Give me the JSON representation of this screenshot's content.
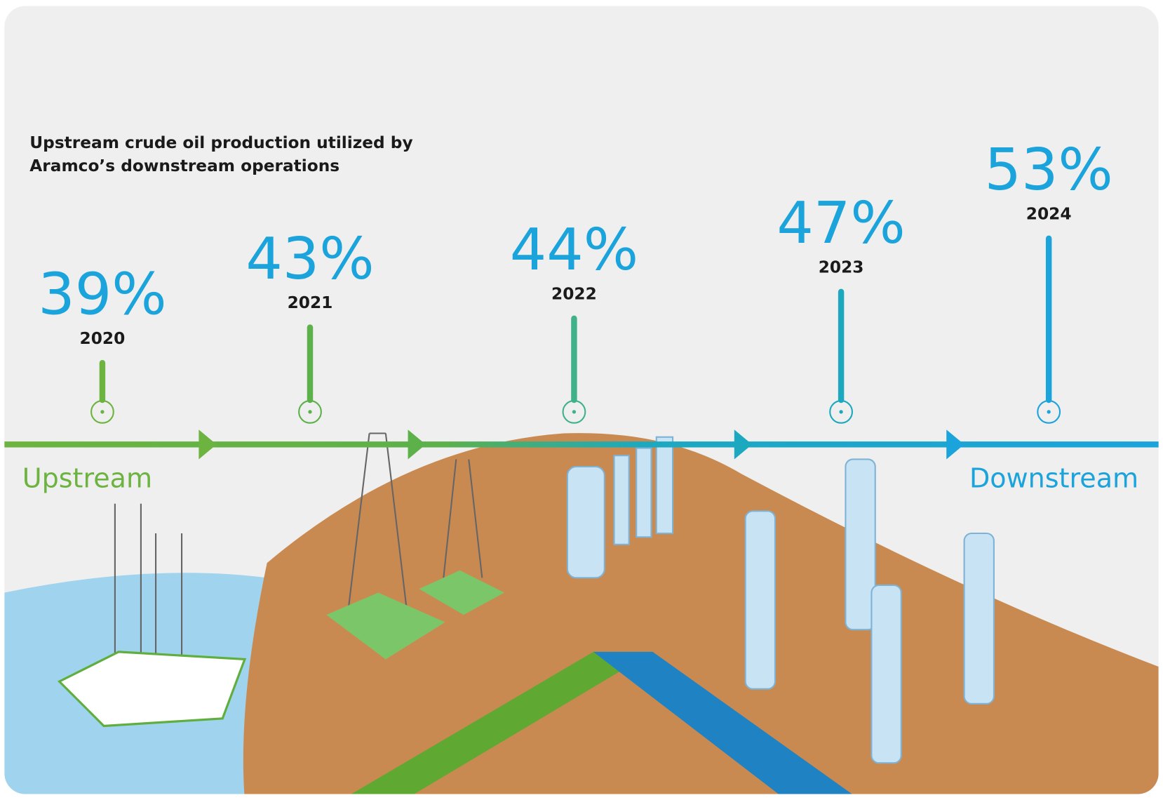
{
  "chart_data": {
    "type": "lollipop",
    "title": [
      "Upstream crude oil production utilized by",
      "Aramco’s downstream operations"
    ],
    "categories": [
      "2020",
      "2021",
      "2022",
      "2023",
      "2024"
    ],
    "values": [
      39,
      43,
      44,
      47,
      53
    ],
    "value_labels": [
      "39%",
      "43%",
      "44%",
      "47%",
      "53%"
    ],
    "colors": [
      "#6cb43f",
      "#5db14a",
      "#3fb28a",
      "#1ca9bf",
      "#1ba3dc"
    ],
    "label_color": "#1ba3dc",
    "annotations": [
      "Upstream",
      "Downstream"
    ]
  }
}
